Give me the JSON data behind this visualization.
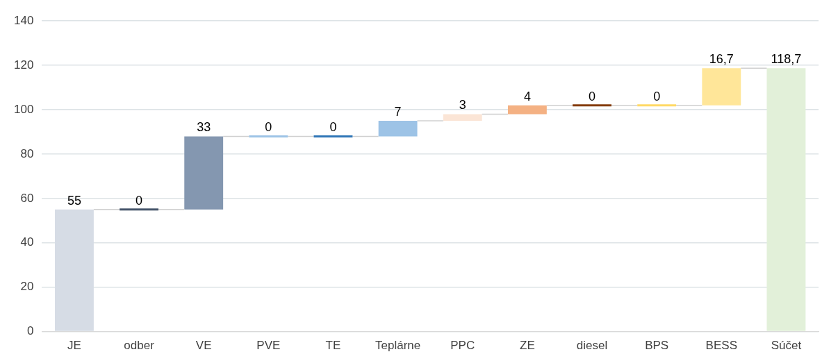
{
  "chart_data": {
    "type": "bar",
    "categories": [
      "JE",
      "odber",
      "VE",
      "PVE",
      "TE",
      "Teplárne",
      "PPC",
      "ZE",
      "diesel",
      "BPS",
      "BESS",
      "Súčet"
    ],
    "values": [
      55,
      0,
      33,
      0,
      0,
      7,
      3,
      4,
      0,
      0,
      16.7,
      118.7
    ],
    "base": [
      0,
      55,
      55,
      88,
      88,
      88,
      95,
      98,
      102,
      102,
      102,
      0
    ],
    "colors": [
      "#d6dce5",
      "#44546a",
      "#8497b0",
      "#9dc3e6",
      "#2e75b6",
      "#9dc3e6",
      "#fbe5d6",
      "#f4b183",
      "#843c0c",
      "#ffd966",
      "#ffe699",
      "#e2f0d9"
    ],
    "value_labels": [
      "55",
      "0",
      "33",
      "0",
      "0",
      "7",
      "3",
      "4",
      "0",
      "0",
      "16,7",
      "118,7"
    ],
    "ylim": [
      0,
      140
    ],
    "yticks": [
      0,
      20,
      40,
      60,
      80,
      100,
      120,
      140
    ],
    "grid": "y",
    "legend": false
  }
}
